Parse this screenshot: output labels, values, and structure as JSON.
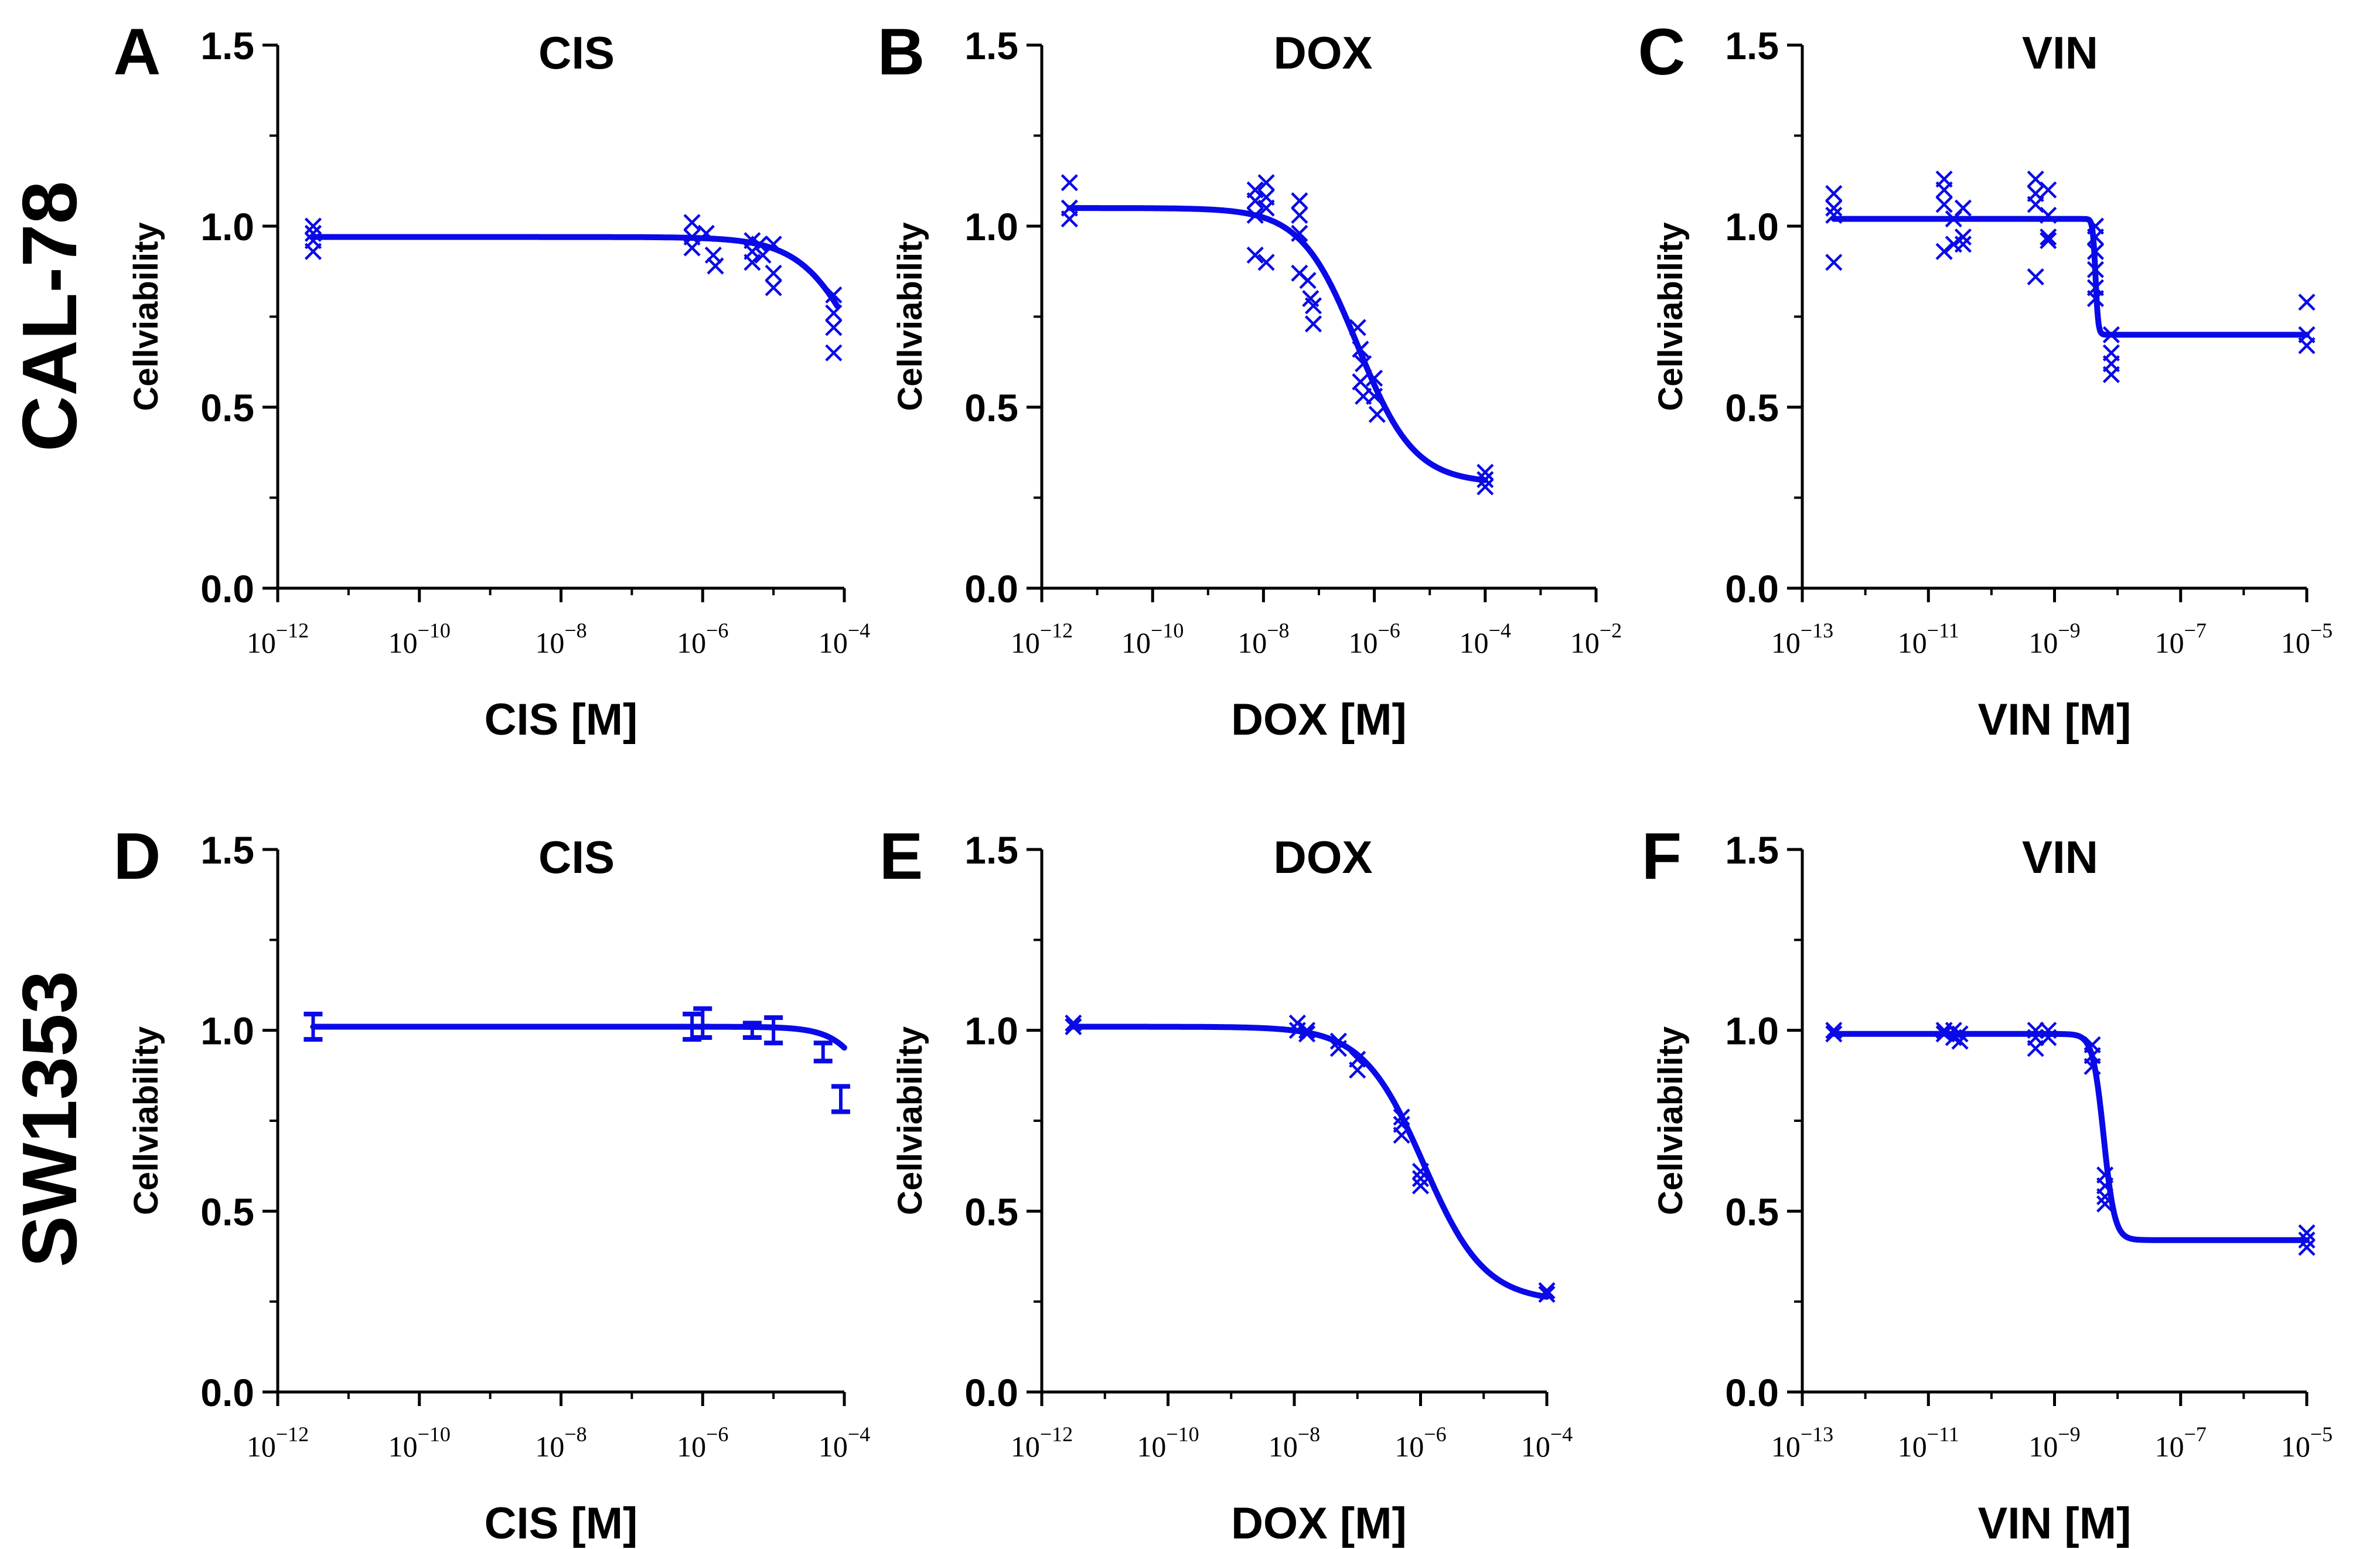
{
  "figure": {
    "row_labels": [
      "CAL-78",
      "SW1353"
    ],
    "ylabel": "Cellviability",
    "colors": {
      "curve": "#0a0ae8",
      "axis": "#000000",
      "text": "#000000"
    }
  },
  "chart_data": [
    {
      "panel": "A",
      "type": "scatter",
      "title": "CIS",
      "xlabel": "CIS [M]",
      "ylabel": "Cellviability",
      "xscale": "log10",
      "xlim": [
        -12,
        -4
      ],
      "ylim": [
        0,
        1.5
      ],
      "xtick_exponents": [
        -12,
        -10,
        -8,
        -6,
        -4
      ],
      "yticks": [
        "0.0",
        "0.5",
        "1.0",
        "1.5"
      ],
      "marker": "x",
      "points": [
        [
          -11.5,
          1.0
        ],
        [
          -11.5,
          0.98
        ],
        [
          -11.5,
          0.96
        ],
        [
          -11.5,
          0.93
        ],
        [
          -6.15,
          1.01
        ],
        [
          -6.15,
          0.97
        ],
        [
          -6.15,
          0.94
        ],
        [
          -5.95,
          0.98
        ],
        [
          -5.85,
          0.92
        ],
        [
          -5.82,
          0.89
        ],
        [
          -5.3,
          0.96
        ],
        [
          -5.3,
          0.93
        ],
        [
          -5.3,
          0.9
        ],
        [
          -5.2,
          0.95
        ],
        [
          -5.15,
          0.92
        ],
        [
          -5.0,
          0.95
        ],
        [
          -5.0,
          0.87
        ],
        [
          -5.0,
          0.83
        ],
        [
          -4.15,
          0.81
        ],
        [
          -4.15,
          0.76
        ],
        [
          -4.15,
          0.72
        ],
        [
          -4.15,
          0.65
        ]
      ],
      "curve": {
        "model": "sigmoid",
        "top": 0.97,
        "bottom": 0.3,
        "logIC50": -3.7,
        "hill": 1.0,
        "range": [
          -11.5,
          -4.1
        ]
      }
    },
    {
      "panel": "B",
      "type": "scatter",
      "title": "DOX",
      "xlabel": "DOX [M]",
      "ylabel": "Cellviability",
      "xscale": "log10",
      "xlim": [
        -12,
        -2
      ],
      "ylim": [
        0,
        1.5
      ],
      "xtick_exponents": [
        -12,
        -10,
        -8,
        -6,
        -4,
        -2
      ],
      "yticks": [
        "0.0",
        "0.5",
        "1.0",
        "1.5"
      ],
      "marker": "x",
      "points": [
        [
          -11.5,
          1.12
        ],
        [
          -11.5,
          1.05
        ],
        [
          -11.5,
          1.02
        ],
        [
          -8.15,
          1.1
        ],
        [
          -8.15,
          1.07
        ],
        [
          -8.15,
          1.03
        ],
        [
          -8.15,
          0.92
        ],
        [
          -7.95,
          1.12
        ],
        [
          -7.95,
          1.08
        ],
        [
          -7.95,
          1.05
        ],
        [
          -7.95,
          0.9
        ],
        [
          -7.35,
          1.07
        ],
        [
          -7.35,
          1.03
        ],
        [
          -7.35,
          0.98
        ],
        [
          -7.35,
          0.87
        ],
        [
          -7.2,
          0.85
        ],
        [
          -7.15,
          0.8
        ],
        [
          -7.1,
          0.78
        ],
        [
          -7.1,
          0.73
        ],
        [
          -6.3,
          0.72
        ],
        [
          -6.25,
          0.66
        ],
        [
          -6.2,
          0.62
        ],
        [
          -6.25,
          0.57
        ],
        [
          -6.2,
          0.53
        ],
        [
          -6.0,
          0.58
        ],
        [
          -6.0,
          0.53
        ],
        [
          -5.95,
          0.48
        ],
        [
          -4.0,
          0.32
        ],
        [
          -4.0,
          0.3
        ],
        [
          -4.0,
          0.28
        ]
      ],
      "curve": {
        "model": "sigmoid",
        "top": 1.05,
        "bottom": 0.29,
        "logIC50": -6.3,
        "hill": 0.85,
        "range": [
          -11.5,
          -4.0
        ]
      }
    },
    {
      "panel": "C",
      "type": "scatter",
      "title": "VIN",
      "xlabel": "VIN [M]",
      "ylabel": "Cellviability",
      "xscale": "log10",
      "xlim": [
        -13,
        -5
      ],
      "ylim": [
        0,
        1.5
      ],
      "xtick_exponents": [
        -13,
        -11,
        -9,
        -7,
        -5
      ],
      "yticks": [
        "0.0",
        "0.5",
        "1.0",
        "1.5"
      ],
      "marker": "x",
      "points": [
        [
          -12.5,
          1.09
        ],
        [
          -12.5,
          1.05
        ],
        [
          -12.5,
          1.03
        ],
        [
          -12.5,
          0.9
        ],
        [
          -10.75,
          1.13
        ],
        [
          -10.75,
          1.1
        ],
        [
          -10.75,
          1.06
        ],
        [
          -10.75,
          0.93
        ],
        [
          -10.6,
          1.02
        ],
        [
          -10.6,
          0.95
        ],
        [
          -10.45,
          1.05
        ],
        [
          -10.45,
          0.97
        ],
        [
          -10.45,
          0.95
        ],
        [
          -9.3,
          1.13
        ],
        [
          -9.3,
          1.09
        ],
        [
          -9.3,
          1.06
        ],
        [
          -9.3,
          0.86
        ],
        [
          -9.1,
          1.1
        ],
        [
          -9.1,
          1.03
        ],
        [
          -9.1,
          0.97
        ],
        [
          -9.1,
          0.96
        ],
        [
          -8.35,
          1.0
        ],
        [
          -8.35,
          0.97
        ],
        [
          -8.35,
          0.93
        ],
        [
          -8.35,
          0.88
        ],
        [
          -8.35,
          0.83
        ],
        [
          -8.35,
          0.8
        ],
        [
          -8.1,
          0.7
        ],
        [
          -8.1,
          0.65
        ],
        [
          -8.1,
          0.62
        ],
        [
          -8.1,
          0.59
        ],
        [
          -5.0,
          0.79
        ],
        [
          -5.0,
          0.7
        ],
        [
          -5.0,
          0.67
        ]
      ],
      "curve": {
        "model": "sigmoid",
        "top": 1.02,
        "bottom": 0.7,
        "logIC50": -8.35,
        "hill": 20,
        "range": [
          -12.5,
          -5.0
        ]
      }
    },
    {
      "panel": "D",
      "type": "scatter",
      "title": "CIS",
      "xlabel": "CIS [M]",
      "ylabel": "Cellviability",
      "xscale": "log10",
      "xlim": [
        -12,
        -4
      ],
      "ylim": [
        0,
        1.5
      ],
      "xtick_exponents": [
        -12,
        -10,
        -8,
        -6,
        -4
      ],
      "yticks": [
        "0.0",
        "0.5",
        "1.0",
        "1.5"
      ],
      "marker": "errorbar",
      "points": [
        [
          -11.5,
          1.01,
          0.035
        ],
        [
          -6.15,
          1.01,
          0.035
        ],
        [
          -6.0,
          1.02,
          0.04
        ],
        [
          -5.3,
          1.0,
          0.02
        ],
        [
          -5.0,
          1.0,
          0.035
        ],
        [
          -4.3,
          0.94,
          0.025
        ],
        [
          -4.05,
          0.81,
          0.035
        ]
      ],
      "curve": {
        "model": "sigmoid",
        "top": 1.01,
        "bottom": 0.3,
        "logIC50": -3.3,
        "hill": 1.5,
        "range": [
          -11.5,
          -4.0
        ]
      }
    },
    {
      "panel": "E",
      "type": "scatter",
      "title": "DOX",
      "xlabel": "DOX [M]",
      "ylabel": "Cellviability",
      "xscale": "log10",
      "xlim": [
        -12,
        -4
      ],
      "ylim": [
        0,
        1.5
      ],
      "xtick_exponents": [
        -12,
        -10,
        -8,
        -6,
        -4
      ],
      "yticks": [
        "0.0",
        "0.5",
        "1.0",
        "1.5"
      ],
      "marker": "x",
      "points": [
        [
          -11.5,
          1.02
        ],
        [
          -11.5,
          1.01
        ],
        [
          -7.95,
          1.02
        ],
        [
          -7.95,
          1.0
        ],
        [
          -7.8,
          1.0
        ],
        [
          -7.8,
          0.99
        ],
        [
          -7.3,
          0.97
        ],
        [
          -7.3,
          0.95
        ],
        [
          -7.0,
          0.92
        ],
        [
          -7.0,
          0.89
        ],
        [
          -6.3,
          0.76
        ],
        [
          -6.3,
          0.74
        ],
        [
          -6.3,
          0.71
        ],
        [
          -6.0,
          0.61
        ],
        [
          -6.0,
          0.59
        ],
        [
          -6.0,
          0.57
        ],
        [
          -4.0,
          0.28
        ],
        [
          -4.0,
          0.27
        ]
      ],
      "curve": {
        "model": "sigmoid",
        "top": 1.01,
        "bottom": 0.25,
        "logIC50": -5.95,
        "hill": 0.9,
        "range": [
          -11.5,
          -4.0
        ]
      }
    },
    {
      "panel": "F",
      "type": "scatter",
      "title": "VIN",
      "xlabel": "VIN [M]",
      "ylabel": "Cellviability",
      "xscale": "log10",
      "xlim": [
        -13,
        -5
      ],
      "ylim": [
        0,
        1.5
      ],
      "xtick_exponents": [
        -13,
        -11,
        -9,
        -7,
        -5
      ],
      "yticks": [
        "0.0",
        "0.5",
        "1.0",
        "1.5"
      ],
      "marker": "x",
      "points": [
        [
          -12.5,
          1.0
        ],
        [
          -12.5,
          0.99
        ],
        [
          -10.75,
          1.0
        ],
        [
          -10.75,
          0.99
        ],
        [
          -10.6,
          1.0
        ],
        [
          -10.6,
          0.98
        ],
        [
          -10.5,
          0.99
        ],
        [
          -10.5,
          0.97
        ],
        [
          -9.3,
          1.0
        ],
        [
          -9.3,
          0.98
        ],
        [
          -9.3,
          0.95
        ],
        [
          -9.1,
          1.0
        ],
        [
          -9.1,
          0.98
        ],
        [
          -8.4,
          0.96
        ],
        [
          -8.4,
          0.93
        ],
        [
          -8.4,
          0.9
        ],
        [
          -8.2,
          0.6
        ],
        [
          -8.2,
          0.57
        ],
        [
          -8.2,
          0.54
        ],
        [
          -8.2,
          0.52
        ],
        [
          -5.0,
          0.44
        ],
        [
          -5.0,
          0.42
        ],
        [
          -5.0,
          0.4
        ]
      ],
      "curve": {
        "model": "sigmoid",
        "top": 0.99,
        "bottom": 0.42,
        "logIC50": -8.22,
        "hill": 5,
        "range": [
          -12.5,
          -5.0
        ]
      }
    }
  ]
}
